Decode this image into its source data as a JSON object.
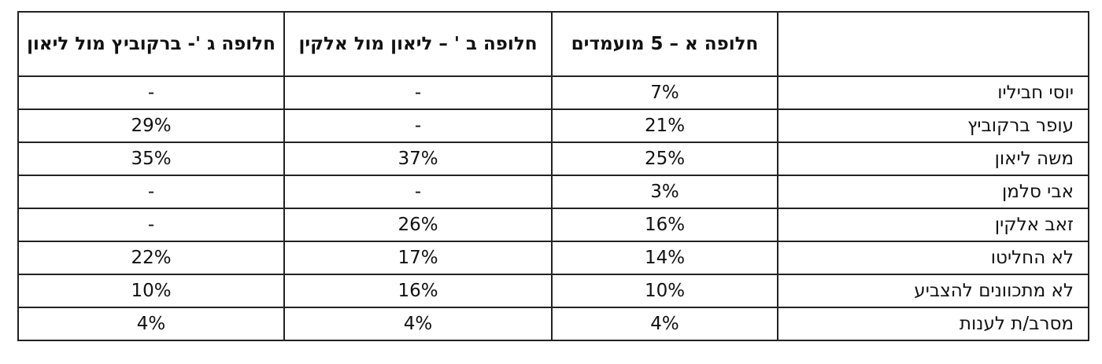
{
  "table": {
    "header": [
      "חלופה א – 5 מועמדים",
      "חלופה ב ' – ליאון מול אלקין",
      "חלופה ג '- ברקוביץ מול ליאון"
    ],
    "rows": [
      [
        "יוסי חביליו",
        "7%",
        "-",
        "-"
      ],
      [
        "עופר ברקוביץ",
        "21%",
        "-",
        "29%"
      ],
      [
        "משה ליאון",
        "25%",
        "37%",
        "35%"
      ],
      [
        "אבי סלמן",
        "3%",
        "-",
        "-"
      ],
      [
        "זאב אלקין",
        "16%",
        "26%",
        "-"
      ],
      [
        "לא החליטו",
        "14%",
        "17%",
        "22%"
      ],
      [
        "לא מתכוונים להצביע",
        "10%",
        "16%",
        "10%"
      ],
      [
        "מסרב/ת לענות",
        "4%",
        "4%",
        "4%"
      ]
    ]
  }
}
